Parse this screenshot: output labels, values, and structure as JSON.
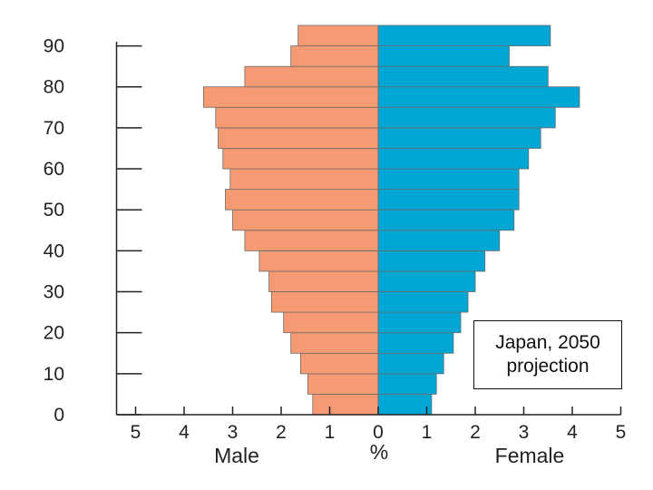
{
  "chart_data": {
    "type": "bar",
    "orientation": "horizontal",
    "layout": "population-pyramid",
    "age_groups": [
      "0-4",
      "5-9",
      "10-14",
      "15-19",
      "20-24",
      "25-29",
      "30-34",
      "35-39",
      "40-44",
      "45-49",
      "50-54",
      "55-59",
      "60-64",
      "65-69",
      "70-74",
      "75-79",
      "80-84",
      "85-89",
      "90-94"
    ],
    "series": [
      {
        "name": "Male",
        "side": "left",
        "color": "#f59a73",
        "values": [
          1.35,
          1.45,
          1.6,
          1.8,
          1.95,
          2.2,
          2.25,
          2.45,
          2.75,
          3.0,
          3.15,
          3.05,
          3.2,
          3.3,
          3.35,
          3.6,
          2.75,
          1.8,
          1.65
        ]
      },
      {
        "name": "Female",
        "side": "right",
        "color": "#00a6d4",
        "values": [
          1.1,
          1.2,
          1.35,
          1.55,
          1.7,
          1.85,
          2.0,
          2.2,
          2.5,
          2.8,
          2.9,
          2.9,
          3.1,
          3.35,
          3.65,
          4.15,
          3.5,
          2.7,
          3.55
        ]
      }
    ],
    "xlabel_left": "Male",
    "xlabel_center": "%",
    "xlabel_right": "Female",
    "x_tick_labels": [
      "5",
      "4",
      "3",
      "2",
      "1",
      "0",
      "1",
      "2",
      "3",
      "4",
      "5"
    ],
    "xlim": [
      -5,
      5
    ],
    "y_tick_labels": [
      "0",
      "10",
      "20",
      "30",
      "40",
      "50",
      "60",
      "70",
      "80",
      "90"
    ],
    "ylim": [
      0,
      95
    ],
    "annotation": {
      "line1": "Japan, 2050",
      "line2": "projection"
    },
    "grid": false,
    "legend": "none"
  }
}
